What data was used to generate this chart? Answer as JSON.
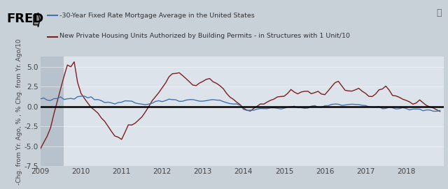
{
  "legend_line1": "-30-Year Fixed Rate Mortgage Average in the United States",
  "legend_line2": "New Private Housing Units Authorized by Building Permits - in Structures with 1 Unit/10",
  "ylabel": "-Chg. from Yr. Ago, % , % Chg. from Yr. Ago/10",
  "ylim": [
    -7.5,
    6.25
  ],
  "yticks": [
    -7.5,
    -5.0,
    -2.5,
    0.0,
    2.5,
    5.0
  ],
  "xlim_start": 2009.0,
  "xlim_end": 2018.92,
  "xticks": [
    2009,
    2010,
    2011,
    2012,
    2013,
    2014,
    2015,
    2016,
    2017,
    2018
  ],
  "bg_color": "#c8d0d8",
  "plot_bg_color": "#dce3ea",
  "header_bg_color": "#c8d0d8",
  "shaded_region_end": 2009.58,
  "shaded_color": "#b8c2cc",
  "zero_line_color": "#000000",
  "blue_color": "#4272b0",
  "red_color": "#7b1f1f",
  "blue_linewidth": 1.0,
  "red_linewidth": 1.0,
  "tick_color": "#444444",
  "tick_fontsize": 7.5,
  "label_fontsize": 6.5
}
